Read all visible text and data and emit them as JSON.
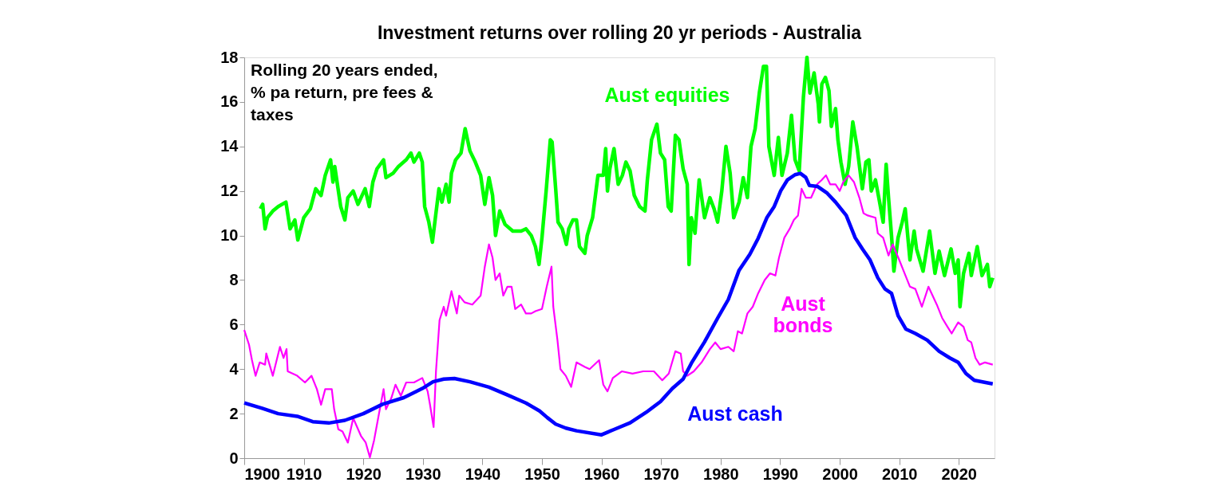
{
  "chart_data": {
    "type": "line",
    "title": "Investment returns over rolling 20 yr periods - Australia",
    "annotations": [
      "Rolling 20 years ended, % pa return, pre fees & taxes"
    ],
    "xlim": [
      1900,
      2026
    ],
    "xticks": [
      1900,
      1910,
      1920,
      1930,
      1940,
      1950,
      1960,
      1970,
      1980,
      1990,
      2000,
      2010,
      2020
    ],
    "ylim": [
      0,
      18
    ],
    "yticks": [
      0,
      2,
      4,
      6,
      8,
      10,
      12,
      14,
      16,
      18
    ],
    "grid": false,
    "legend": false,
    "marker": "none",
    "line_style": "solid",
    "series": [
      {
        "name": "Aust equities",
        "color": "#00ff00",
        "x": [
          1902.7,
          1903.1,
          1903.5,
          1903.9,
          1904.8,
          1905.7,
          1907,
          1907.7,
          1908.5,
          1909,
          1910,
          1911.1,
          1912,
          1912.9,
          1913.6,
          1914.5,
          1914.9,
          1915.2,
          1916.2,
          1916.9,
          1917.4,
          1918.3,
          1919.1,
          1920.3,
          1921,
          1921.6,
          1922.3,
          1923.4,
          1923.8,
          1925,
          1925.9,
          1927.2,
          1928,
          1928.5,
          1929.4,
          1929.9,
          1930.3,
          1931,
          1931.6,
          1932.1,
          1932.7,
          1933.2,
          1933.9,
          1934.4,
          1934.8,
          1935.5,
          1936.4,
          1937.1,
          1937.9,
          1938.8,
          1939.7,
          1940.4,
          1941.1,
          1941.7,
          1942.2,
          1942.9,
          1943.8,
          1945.1,
          1946.5,
          1947.3,
          1948.2,
          1948.9,
          1949.5,
          1950,
          1950.7,
          1951.4,
          1951.7,
          1952.3,
          1952.7,
          1953.4,
          1954.1,
          1954.5,
          1955.2,
          1955.8,
          1956.3,
          1957.2,
          1957.6,
          1958.5,
          1959.4,
          1960.3,
          1960.7,
          1961,
          1961.4,
          1962.1,
          1962.8,
          1963.5,
          1964.1,
          1964.8,
          1965.5,
          1966.4,
          1967.3,
          1967.7,
          1968.4,
          1969.3,
          1969.9,
          1970.6,
          1971.2,
          1971.7,
          1972.4,
          1973,
          1973.7,
          1974.4,
          1974.7,
          1975.1,
          1975.7,
          1976.4,
          1977.3,
          1978.2,
          1978.9,
          1979.5,
          1980.2,
          1980.9,
          1981.6,
          1982.2,
          1983.1,
          1983.8,
          1984.5,
          1985.1,
          1985.8,
          1986.5,
          1987.2,
          1987.7,
          1988.1,
          1989,
          1989.7,
          1990.3,
          1991.2,
          1991.9,
          1992.5,
          1993.2,
          1993.9,
          1994.5,
          1995,
          1995.7,
          1996.4,
          1996.6,
          1997,
          1997.6,
          1998.2,
          1998.6,
          1999.3,
          1999.7,
          2000.2,
          2000.9,
          2001.5,
          2002.2,
          2002.9,
          2003.8,
          2004.4,
          2004.9,
          2005.3,
          2006,
          2006.7,
          2007.3,
          2007.8,
          2008.2,
          2008.7,
          2009.1,
          2009.8,
          2010.5,
          2011,
          2011.8,
          2012.5,
          2012.9,
          2014,
          2015.1,
          2016,
          2016.7,
          2017.6,
          2018.7,
          2019.4,
          2019.9,
          2020.2,
          2020.8,
          2021.7,
          2022.1,
          2023.1,
          2023.9,
          2024.8,
          2025.2,
          2025.7
        ],
        "values": [
          11.2,
          11.4,
          10.3,
          10.8,
          11.1,
          11.3,
          11.5,
          10.3,
          10.7,
          9.8,
          10.8,
          11.2,
          12.1,
          11.8,
          12.7,
          13.4,
          12.4,
          13.1,
          11.3,
          10.7,
          11.7,
          12.0,
          11.4,
          12.1,
          11.3,
          12.4,
          13.0,
          13.4,
          12.6,
          12.8,
          13.1,
          13.4,
          13.7,
          13.3,
          13.7,
          13.3,
          11.3,
          10.6,
          9.7,
          10.8,
          12.1,
          11.5,
          12.3,
          11.5,
          12.8,
          13.4,
          13.7,
          14.8,
          13.8,
          13.3,
          12.7,
          11.4,
          12.6,
          11.8,
          10.0,
          11.1,
          10.5,
          10.2,
          10.2,
          10.3,
          10.0,
          9.5,
          8.7,
          9.9,
          12.0,
          14.3,
          14.2,
          12.1,
          10.6,
          10.3,
          9.6,
          10.3,
          10.7,
          10.7,
          9.5,
          9.2,
          10.0,
          10.8,
          12.7,
          12.7,
          13.9,
          12.0,
          13.0,
          13.9,
          12.3,
          12.7,
          13.3,
          12.9,
          11.8,
          11.3,
          11.1,
          12.5,
          14.3,
          15.0,
          13.7,
          13.4,
          11.3,
          11.1,
          14.5,
          14.3,
          13.0,
          12.3,
          8.7,
          10.8,
          10.1,
          12.5,
          10.8,
          11.7,
          11.2,
          10.6,
          12.0,
          14.0,
          12.8,
          10.8,
          11.5,
          12.6,
          11.7,
          14.0,
          14.8,
          16.4,
          17.6,
          17.6,
          14.0,
          12.7,
          14.4,
          12.7,
          13.7,
          15.4,
          13.4,
          12.9,
          16.2,
          18.0,
          16.4,
          17.3,
          15.9,
          15.1,
          16.8,
          17.1,
          16.5,
          14.9,
          15.7,
          14.3,
          13.3,
          12.3,
          13.1,
          15.1,
          14.0,
          12.1,
          13.3,
          13.4,
          12.0,
          12.5,
          11.5,
          10.6,
          13.2,
          11.7,
          10.0,
          8.4,
          9.9,
          10.6,
          11.2,
          8.9,
          10.2,
          9.4,
          8.4,
          10.2,
          8.3,
          9.3,
          8.2,
          9.4,
          8.3,
          8.9,
          6.8,
          8.3,
          9.2,
          8.2,
          9.5,
          8.2,
          8.7,
          7.7,
          8.1
        ]
      },
      {
        "name": "Aust bonds",
        "color": "#ff00ff",
        "x": [
          1900,
          1900.8,
          1901.3,
          1901.9,
          1902.6,
          1903.5,
          1903.7,
          1904.8,
          1906,
          1906.6,
          1907.1,
          1907.3,
          1908.9,
          1910.2,
          1911.3,
          1912.2,
          1912.9,
          1913.6,
          1914.7,
          1915.1,
          1915.8,
          1916.5,
          1917.4,
          1918.3,
          1919.6,
          1920.4,
          1921.1,
          1921.8,
          1922.7,
          1923.4,
          1923.8,
          1924.7,
          1925.4,
          1926.3,
          1927.2,
          1928.5,
          1929.9,
          1930.8,
          1931.2,
          1931.8,
          1932.2,
          1932.8,
          1933.5,
          1933.9,
          1934.8,
          1935.7,
          1936.1,
          1937,
          1938.3,
          1939.7,
          1940.4,
          1941.1,
          1941.7,
          1942.2,
          1942.9,
          1943.5,
          1944.2,
          1944.9,
          1945.5,
          1946.5,
          1947.3,
          1948.2,
          1948.9,
          1950,
          1950.8,
          1951.6,
          1951.9,
          1952.6,
          1953.1,
          1954,
          1954.9,
          1955.8,
          1957.2,
          1958,
          1959.6,
          1960.3,
          1961,
          1961.9,
          1963.4,
          1965.2,
          1967,
          1968.8,
          1970.2,
          1971.3,
          1972.4,
          1973.3,
          1973.7,
          1974.4,
          1975.5,
          1976.8,
          1978.2,
          1979.1,
          1980,
          1981.3,
          1982.2,
          1982.9,
          1983.6,
          1984.5,
          1985.4,
          1986.3,
          1987.4,
          1988.3,
          1989.2,
          1989.8,
          1990.7,
          1991.6,
          1992.3,
          1993,
          1993.6,
          1994.3,
          1995.2,
          1996.2,
          1997,
          1997.7,
          1998.4,
          1999.3,
          2000,
          2000.6,
          2001.5,
          2002.4,
          2003.3,
          2004,
          2004.7,
          2006,
          2006.4,
          2007.3,
          2008.2,
          2008.9,
          2010,
          2010.9,
          2011.8,
          2012.7,
          2013.8,
          2014.9,
          2016.3,
          2017.2,
          2018.1,
          2018.8,
          2019.9,
          2020.8,
          2021.5,
          2022.1,
          2022.8,
          2023.5,
          2024.4,
          2025.7
        ],
        "values": [
          5.76,
          5.1,
          4.4,
          3.7,
          4.3,
          4.2,
          4.7,
          3.7,
          5.0,
          4.5,
          4.9,
          3.9,
          3.7,
          3.4,
          3.7,
          3.1,
          2.4,
          3.1,
          3.1,
          2.2,
          1.3,
          1.2,
          0.7,
          1.8,
          1.0,
          0.7,
          0.04,
          0.8,
          2.1,
          3.1,
          2.2,
          2.7,
          3.3,
          2.8,
          3.4,
          3.4,
          3.6,
          3.0,
          2.4,
          1.4,
          3.9,
          6.2,
          6.8,
          6.4,
          7.5,
          6.5,
          7.3,
          7.0,
          6.9,
          7.3,
          8.6,
          9.6,
          9.0,
          8.0,
          8.3,
          7.3,
          7.7,
          7.7,
          6.7,
          6.9,
          6.5,
          6.5,
          6.6,
          6.7,
          7.7,
          8.6,
          6.8,
          5.3,
          4.0,
          3.7,
          3.2,
          4.3,
          4.1,
          4.0,
          4.4,
          3.3,
          3.0,
          3.6,
          3.9,
          3.8,
          3.9,
          3.9,
          3.5,
          3.8,
          4.8,
          4.7,
          3.9,
          3.7,
          3.9,
          4.3,
          4.9,
          5.2,
          4.9,
          5.0,
          4.8,
          5.7,
          5.6,
          6.5,
          6.8,
          7.4,
          8.0,
          8.3,
          8.2,
          9.0,
          9.9,
          10.3,
          10.7,
          10.9,
          12.1,
          11.7,
          11.7,
          12.3,
          12.5,
          12.7,
          12.3,
          12.3,
          12.0,
          12.4,
          12.7,
          12.4,
          11.7,
          11.0,
          10.9,
          10.8,
          10.1,
          9.9,
          9.1,
          9.6,
          8.9,
          8.3,
          7.7,
          7.6,
          6.8,
          7.7,
          6.9,
          6.3,
          5.9,
          5.6,
          6.1,
          5.9,
          5.3,
          5.2,
          4.5,
          4.2,
          4.3,
          4.2
        ]
      },
      {
        "name": "Aust cash",
        "color": "#0000ff",
        "x": [
          1900,
          1903,
          1905.7,
          1908.9,
          1911.5,
          1914.2,
          1916.9,
          1920,
          1923.2,
          1926.8,
          1929.9,
          1931.7,
          1933.5,
          1935.3,
          1937.9,
          1941.1,
          1944.2,
          1947.3,
          1949.6,
          1950.9,
          1952.3,
          1954,
          1955.8,
          1960,
          1962.1,
          1964.8,
          1967.5,
          1969.9,
          1971.9,
          1973.7,
          1975.1,
          1977.3,
          1979.5,
          1981.3,
          1983.1,
          1984.9,
          1986.3,
          1987.8,
          1989,
          1990.1,
          1991.2,
          1992.5,
          1993.4,
          1994.3,
          1994.9,
          1996.3,
          1997.9,
          1999.3,
          2001.1,
          2002.6,
          2003.8,
          2005.1,
          2006.4,
          2007.6,
          2008.7,
          2009.8,
          2011.1,
          2012.7,
          2014.7,
          2016.7,
          2018.5,
          2019.9,
          2021.2,
          2022.6,
          2025.7
        ],
        "values": [
          2.48,
          2.24,
          2.0,
          1.88,
          1.64,
          1.58,
          1.7,
          2.0,
          2.42,
          2.72,
          3.13,
          3.43,
          3.55,
          3.58,
          3.43,
          3.19,
          2.84,
          2.48,
          2.12,
          1.82,
          1.53,
          1.35,
          1.23,
          1.05,
          1.29,
          1.59,
          2.06,
          2.54,
          3.13,
          3.55,
          4.27,
          5.22,
          6.29,
          7.13,
          8.44,
          9.15,
          9.87,
          10.82,
          11.3,
          12.01,
          12.49,
          12.73,
          12.79,
          12.61,
          12.25,
          12.2,
          11.9,
          11.5,
          10.9,
          9.9,
          9.4,
          8.9,
          8.1,
          7.6,
          7.4,
          6.4,
          5.8,
          5.6,
          5.3,
          4.8,
          4.5,
          4.3,
          3.8,
          3.5,
          3.34
        ]
      }
    ]
  }
}
